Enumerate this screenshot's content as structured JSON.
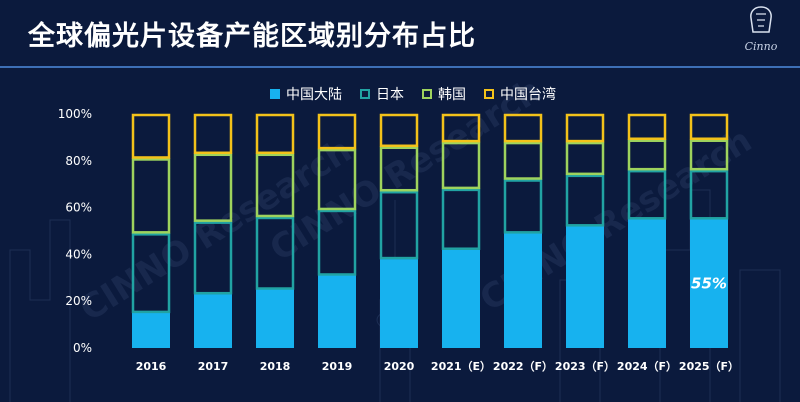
{
  "page": {
    "title": "全球偏光片设备产能区域别分布占比"
  },
  "logo": {
    "name": "cinno-logo",
    "word": "Cinno"
  },
  "watermark": {
    "text": "CINNO Research"
  },
  "chart_data": {
    "type": "bar",
    "stacked": true,
    "title": "全球偏光片设备产能区域别分布占比",
    "categories": [
      "2016",
      "2017",
      "2018",
      "2019",
      "2020",
      "2021（E）",
      "2022（F）",
      "2023（F）",
      "2024（F）",
      "2025（F）"
    ],
    "series": [
      {
        "name": "中国大陆",
        "color": "#17b2ef",
        "values": [
          15,
          23,
          25,
          31,
          38,
          42,
          49,
          52,
          55,
          55
        ]
      },
      {
        "name": "日本",
        "color": "#21a3a3",
        "values": [
          34,
          31,
          31,
          28,
          29,
          26,
          23,
          22,
          21,
          21
        ]
      },
      {
        "name": "韩国",
        "color": "#9ed35d",
        "values": [
          32,
          29,
          27,
          26,
          19,
          20,
          16,
          14,
          13,
          13
        ]
      },
      {
        "name": "中国台湾",
        "color": "#f3c21a",
        "values": [
          19,
          17,
          17,
          15,
          14,
          12,
          12,
          12,
          11,
          11
        ]
      }
    ],
    "ylim": [
      0,
      100
    ],
    "yticks": [
      "0%",
      "20%",
      "40%",
      "60%",
      "80%",
      "100%"
    ],
    "annotations": [
      {
        "category": "2025（F）",
        "text": "55%"
      }
    ],
    "legend_position": "top-center"
  }
}
